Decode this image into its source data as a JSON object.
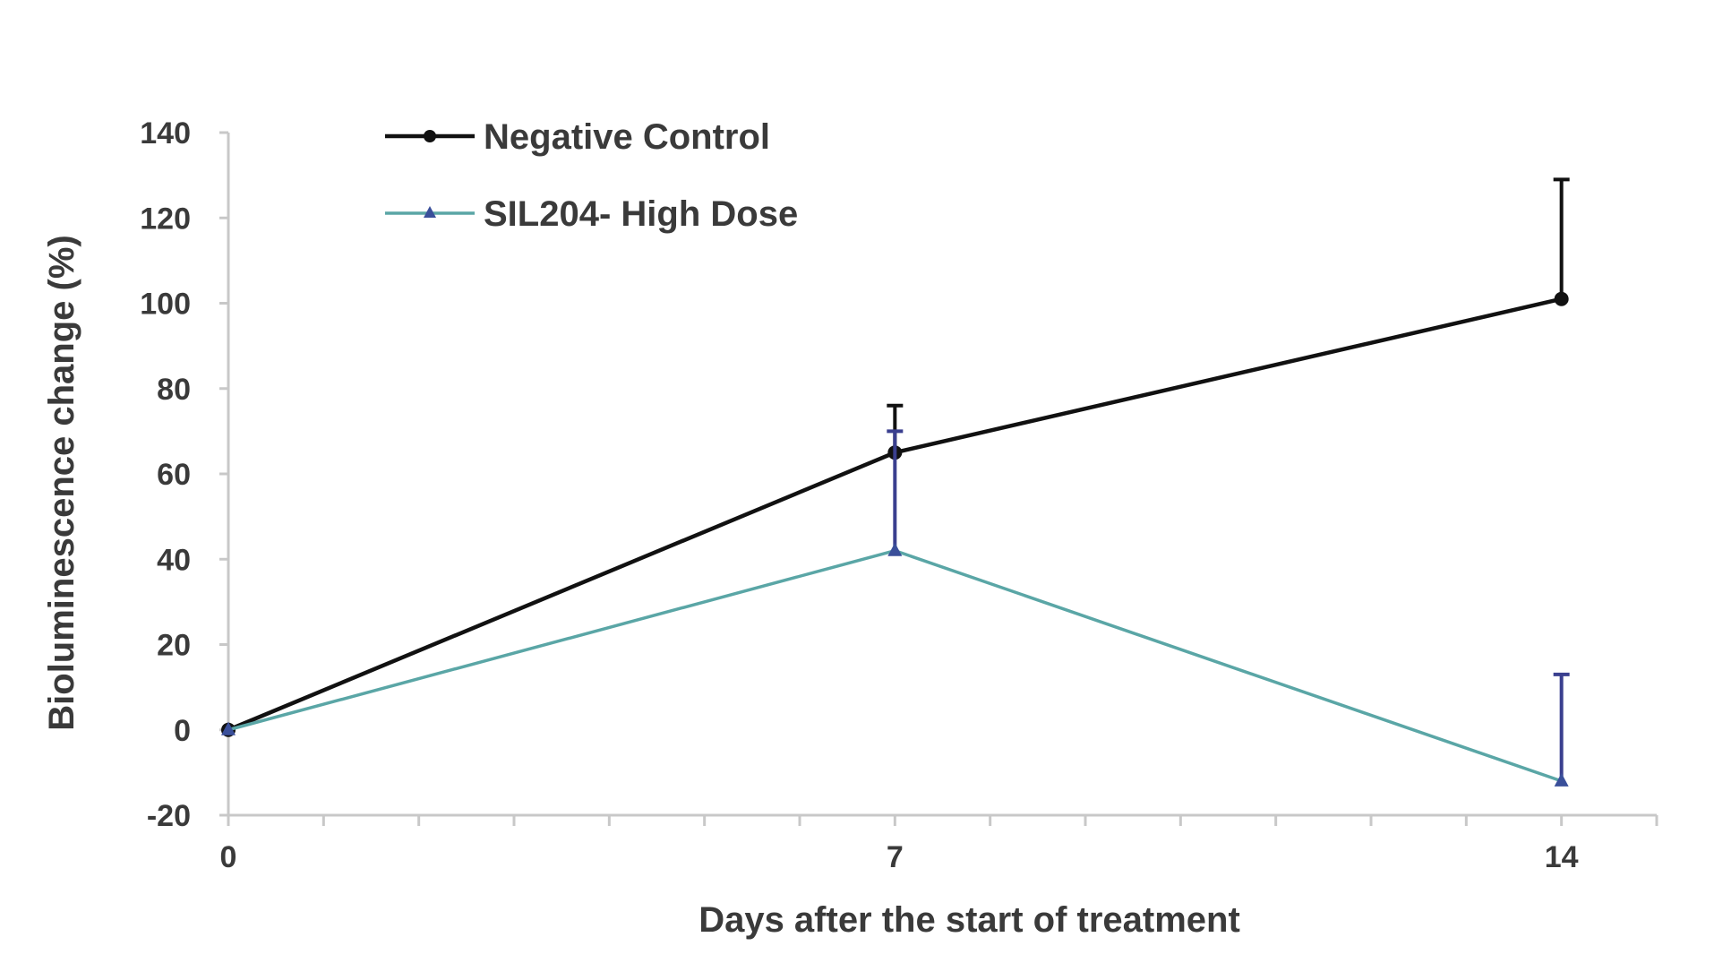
{
  "chart_data": {
    "type": "line",
    "title": "",
    "xlabel": "Days after the start of treatment",
    "ylabel": "Bioluminescence change (%)",
    "x": [
      0,
      7,
      14
    ],
    "xticks": [
      "0",
      "7",
      "14"
    ],
    "xlim": [
      0,
      15
    ],
    "ylim": [
      -20,
      140
    ],
    "yticks": [
      "-20",
      "0",
      "20",
      "40",
      "60",
      "80",
      "100",
      "120",
      "140"
    ],
    "legend_position": "top-left",
    "series": [
      {
        "name": "Negative Control",
        "values": [
          0,
          65,
          101
        ],
        "error_upper": [
          0,
          11,
          28
        ],
        "color": "#111111",
        "marker": "circle"
      },
      {
        "name": "SIL204- High Dose",
        "values": [
          0,
          42,
          -12
        ],
        "error_upper": [
          0,
          28,
          25
        ],
        "color": "#5aa6a6",
        "error_color": "#3a3f8f",
        "marker": "triangle"
      }
    ]
  }
}
